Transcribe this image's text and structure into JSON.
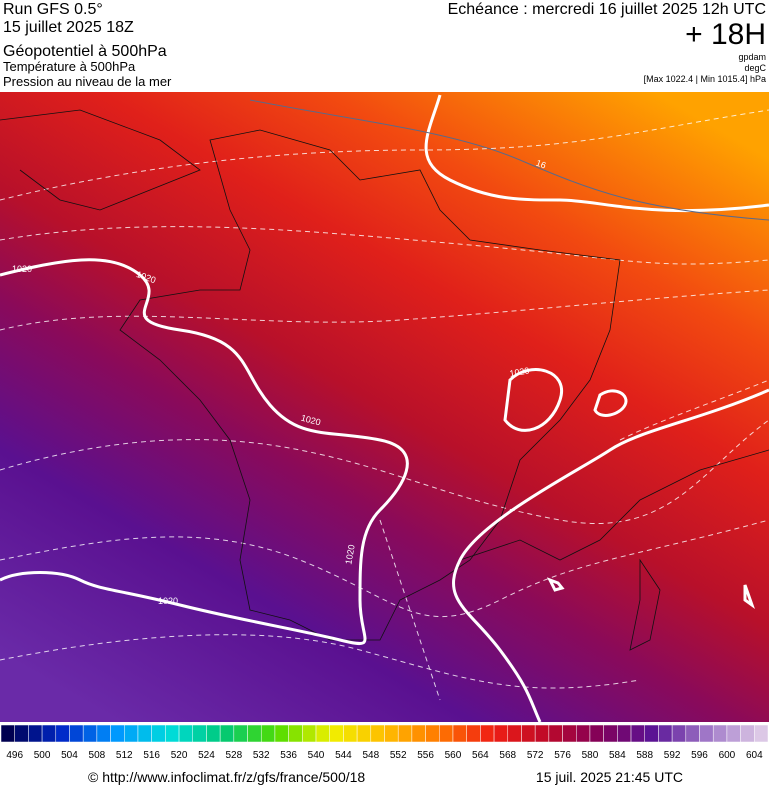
{
  "header": {
    "left": [
      "Run GFS 0.5°",
      "15 juillet 2025 18Z",
      "Géopotentiel à 500hPa",
      "Température à 500hPa",
      "Pression au niveau de la mer"
    ],
    "right": {
      "valid": "Echéance : mercredi 16 juillet 2025 12h UTC",
      "lead": "+ 18H",
      "units": [
        "gpdam",
        "degC"
      ],
      "pressure": "[Max 1022.4 | Min 1015.4] hPa"
    }
  },
  "map": {
    "labels": [
      "1020",
      "1020",
      "1020",
      "1020",
      "1020",
      "1020",
      "16"
    ]
  },
  "scale": {
    "labels": [
      496,
      500,
      504,
      508,
      512,
      516,
      520,
      524,
      528,
      532,
      536,
      540,
      544,
      548,
      552,
      556,
      560,
      564,
      568,
      572,
      576,
      580,
      584,
      588,
      592,
      596,
      600,
      604
    ]
  },
  "footer": {
    "source": "© http://www.infoclimat.fr/z/gfs/france/500/18",
    "timestamp": "15 juil. 2025 21:45 UTC"
  }
}
